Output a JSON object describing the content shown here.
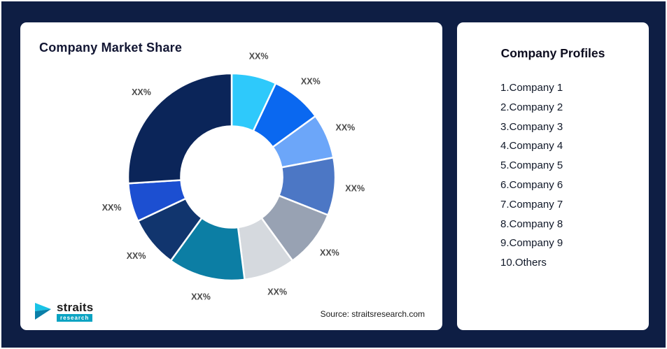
{
  "theme": {
    "background": "#0e1e44",
    "card": "#ffffff",
    "label_color": "#4a4a4a"
  },
  "left_card": {
    "title": "Company Market Share",
    "source": "Source: straitsresearch.com"
  },
  "logo": {
    "name": "straits",
    "sub": "research"
  },
  "right_card": {
    "title": "Company Profiles",
    "items": [
      "1.Company 1",
      "2.Company 2",
      "3.Company 3",
      "4.Company 4",
      "5.Company 5",
      "6.Company 6",
      "7.Company 7",
      "8.Company 8",
      "9.Company 9",
      "10.Others"
    ]
  },
  "chart_data": {
    "type": "pie",
    "subtype": "donut",
    "title": "Company Market Share",
    "legend": "none",
    "start_angle_deg": 0,
    "inner_radius_ratio": 0.49,
    "labels": [
      "XX%",
      "XX%",
      "XX%",
      "XX%",
      "XX%",
      "XX%",
      "XX%",
      "XX%",
      "XX%",
      "XX%"
    ],
    "series_names": [
      "Company 1",
      "Company 2",
      "Company 3",
      "Company 4",
      "Company 5",
      "Company 6",
      "Company 7",
      "Company 8",
      "Company 9",
      "Others"
    ],
    "values": [
      7,
      8,
      7,
      9,
      9,
      8,
      12,
      8,
      6,
      26
    ],
    "colors": [
      "#2ec9fb",
      "#0a68f0",
      "#6ca6f9",
      "#4c77c5",
      "#98a2b3",
      "#d5d9de",
      "#0c7ea4",
      "#11356e",
      "#1c4fd1",
      "#0b2559"
    ]
  }
}
